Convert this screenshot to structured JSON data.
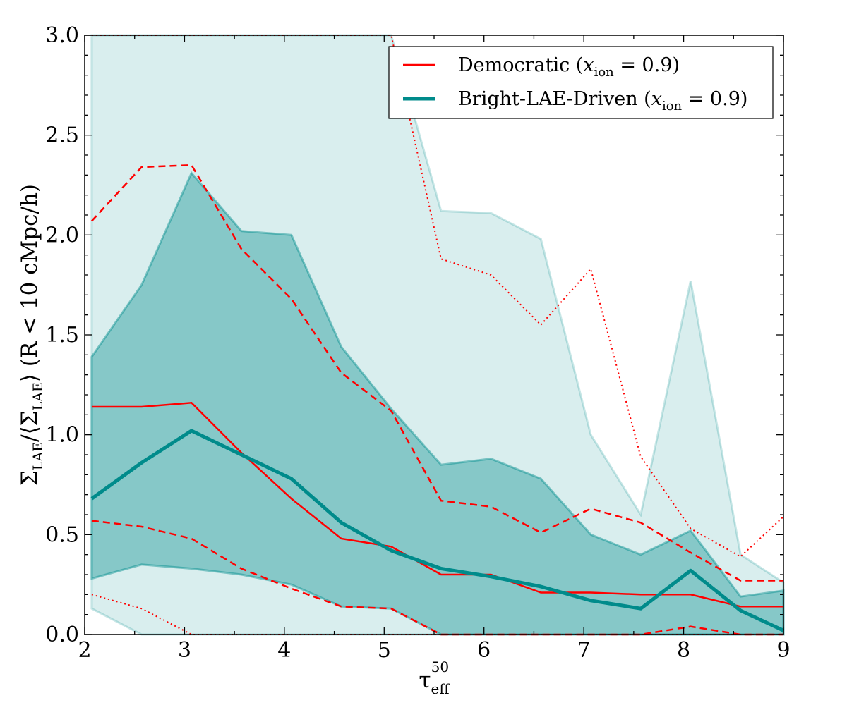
{
  "chart_data": {
    "type": "line",
    "title": "",
    "xlabel": "τ_eff^50",
    "ylabel": "Σ_LAE/⟨Σ_LAE⟩ (R < 10 cMpc/h)",
    "xlim": [
      2,
      9
    ],
    "ylim": [
      0,
      3
    ],
    "grid": false,
    "legend_position": "top-right",
    "xticks": [
      2,
      3,
      4,
      5,
      6,
      7,
      8,
      9
    ],
    "xtick_labels": [
      "2",
      "3",
      "4",
      "5",
      "6",
      "7",
      "8",
      "9"
    ],
    "yticks": [
      0.0,
      0.5,
      1.0,
      1.5,
      2.0,
      2.5,
      3.0
    ],
    "ytick_labels": [
      "0.0",
      "0.5",
      "1.0",
      "1.5",
      "2.0",
      "2.5",
      "3.0"
    ],
    "x": [
      2.07,
      2.57,
      3.07,
      3.57,
      4.07,
      4.57,
      5.07,
      5.57,
      6.07,
      6.57,
      7.07,
      7.57,
      8.07,
      8.57,
      9.0
    ],
    "series": [
      {
        "name": "Democratic (x_ion = 0.9)",
        "legend_main": "Democratic (",
        "legend_var": "x",
        "legend_sub": "ion",
        "legend_rest": " = 0.9)",
        "color": "#ff0000",
        "style": "solid",
        "median": [
          1.14,
          1.14,
          1.16,
          0.91,
          0.68,
          0.48,
          0.44,
          0.3,
          0.3,
          0.21,
          0.21,
          0.2,
          0.2,
          0.14,
          0.14
        ],
        "band_1sigma_low": [
          0.57,
          0.54,
          0.48,
          0.33,
          0.23,
          0.14,
          0.13,
          0.0,
          0.0,
          0.0,
          0.0,
          0.0,
          0.04,
          0.0,
          0.0
        ],
        "band_1sigma_high": [
          2.07,
          2.34,
          2.35,
          1.93,
          1.68,
          1.31,
          1.12,
          0.67,
          0.64,
          0.51,
          0.63,
          0.56,
          0.41,
          0.27,
          0.27
        ],
        "band_2sigma_low": [
          0.2,
          0.13,
          0.0,
          0.0,
          0.0,
          0.0,
          0.0,
          0.0,
          0.0,
          0.0,
          0.0,
          0.0,
          0.0,
          0.0,
          0.0
        ],
        "band_2sigma_high": [
          3.0,
          3.0,
          3.0,
          3.0,
          3.0,
          3.0,
          3.0,
          1.88,
          1.8,
          1.55,
          1.83,
          0.89,
          0.53,
          0.39,
          0.59
        ]
      },
      {
        "name": "Bright-LAE-Driven (x_ion = 0.9)",
        "legend_main": "Bright-LAE-Driven (",
        "legend_var": "x",
        "legend_sub": "ion",
        "legend_rest": " = 0.9)",
        "color": "#008b8b",
        "style": "solid-thick",
        "median": [
          0.68,
          0.86,
          1.02,
          0.9,
          0.78,
          0.56,
          0.42,
          0.33,
          0.29,
          0.24,
          0.17,
          0.13,
          0.32,
          0.12,
          0.02
        ],
        "band_1sigma_low": [
          0.28,
          0.35,
          0.33,
          0.3,
          0.25,
          0.14,
          0.13,
          0.0,
          0.0,
          0.0,
          0.0,
          0.0,
          0.0,
          0.0,
          0.0
        ],
        "band_1sigma_high": [
          1.39,
          1.75,
          2.31,
          2.02,
          2.0,
          1.44,
          1.13,
          0.85,
          0.88,
          0.78,
          0.5,
          0.4,
          0.52,
          0.19,
          0.22
        ],
        "band_2sigma_low": [
          0.13,
          0.0,
          0.0,
          0.0,
          0.0,
          0.0,
          0.0,
          0.0,
          0.0,
          0.0,
          0.0,
          0.0,
          0.0,
          0.0,
          0.0
        ],
        "band_2sigma_high": [
          3.0,
          3.0,
          3.0,
          3.0,
          3.0,
          3.0,
          3.0,
          2.12,
          2.11,
          1.98,
          1.0,
          0.6,
          1.77,
          0.4,
          0.26
        ]
      }
    ]
  }
}
